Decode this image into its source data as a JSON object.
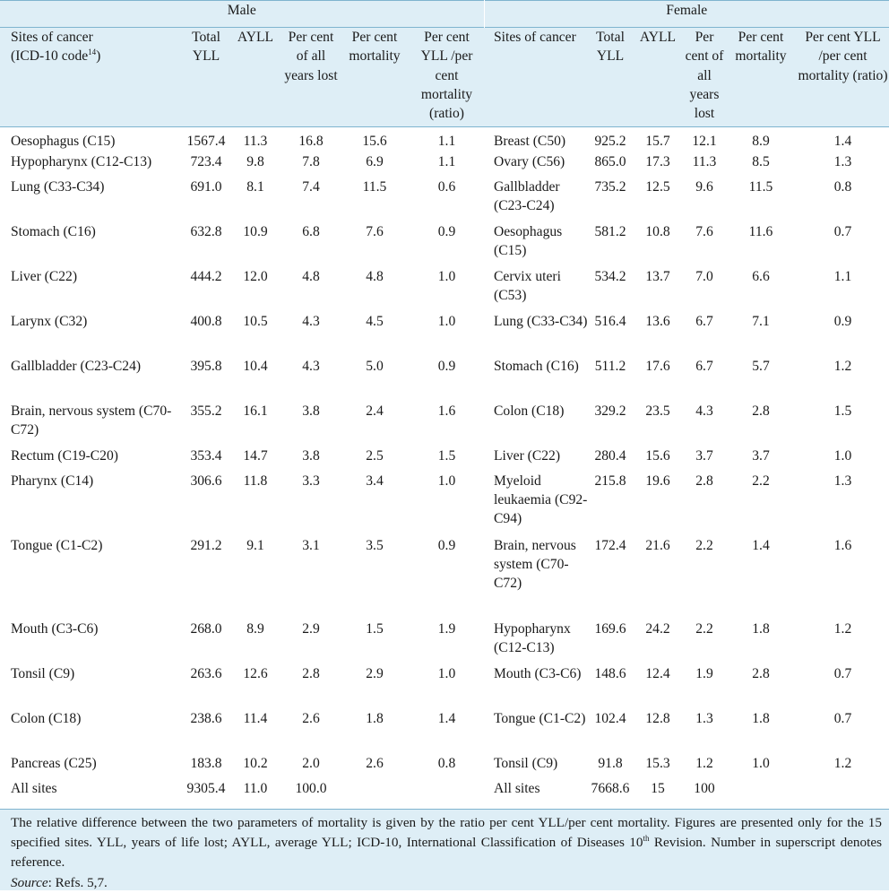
{
  "group_headers": {
    "male": "Male",
    "female": "Female"
  },
  "columns": {
    "male": {
      "site": "Sites of cancer",
      "site_line2": "(ICD-10 code",
      "site_ref": "14",
      "site_close": ")",
      "total": "Total YLL",
      "ayll": "AYLL",
      "pct_years": "Per cent of all years lost",
      "pct_mort": "Per cent mortality",
      "ratio": "Per cent YLL /per cent mortality (ratio)"
    },
    "female": {
      "site": "Sites of cancer",
      "total": "Total YLL",
      "ayll": "AYLL",
      "pct_years": "Per cent of all years lost",
      "pct_mort": "Per cent mortality",
      "ratio": "Per cent YLL /per cent mortality (ratio)"
    }
  },
  "rows": [
    {
      "m_site": "Oesophagus (C15)",
      "m_total": "1567.4",
      "m_ayll": "11.3",
      "m_pct": "16.8",
      "m_mort": "15.6",
      "m_ratio": "1.1",
      "f_site": "Breast (C50)",
      "f_total": "925.2",
      "f_ayll": "15.7",
      "f_pct": "12.1",
      "f_mort": "8.9",
      "f_ratio": "1.4"
    },
    {
      "m_site": "Hypopharynx (C12-C13)",
      "m_total": "723.4",
      "m_ayll": "9.8",
      "m_pct": "7.8",
      "m_mort": "6.9",
      "m_ratio": "1.1",
      "f_site": "Ovary (C56)",
      "f_total": "865.0",
      "f_ayll": "17.3",
      "f_pct": "11.3",
      "f_mort": "8.5",
      "f_ratio": "1.3"
    },
    {
      "m_site": "Lung (C33-C34)",
      "m_total": "691.0",
      "m_ayll": "8.1",
      "m_pct": "7.4",
      "m_mort": "11.5",
      "m_ratio": "0.6",
      "f_site": "Gallbladder (C23-C24)",
      "f_total": "735.2",
      "f_ayll": "12.5",
      "f_pct": "9.6",
      "f_mort": "11.5",
      "f_ratio": "0.8"
    },
    {
      "m_site": "Stomach (C16)",
      "m_total": "632.8",
      "m_ayll": "10.9",
      "m_pct": "6.8",
      "m_mort": "7.6",
      "m_ratio": "0.9",
      "f_site": "Oesophagus (C15)",
      "f_total": "581.2",
      "f_ayll": "10.8",
      "f_pct": "7.6",
      "f_mort": "11.6",
      "f_ratio": "0.7"
    },
    {
      "m_site": "Liver (C22)",
      "m_total": "444.2",
      "m_ayll": "12.0",
      "m_pct": "4.8",
      "m_mort": "4.8",
      "m_ratio": "1.0",
      "f_site": "Cervix uteri (C53)",
      "f_total": "534.2",
      "f_ayll": "13.7",
      "f_pct": "7.0",
      "f_mort": "6.6",
      "f_ratio": "1.1"
    },
    {
      "m_site": "Larynx (C32)",
      "m_total": "400.8",
      "m_ayll": "10.5",
      "m_pct": "4.3",
      "m_mort": "4.5",
      "m_ratio": "1.0",
      "f_site": "Lung (C33-C34)",
      "f_total": "516.4",
      "f_ayll": "13.6",
      "f_pct": "6.7",
      "f_mort": "7.1",
      "f_ratio": "0.9"
    },
    {
      "m_site": "Gallbladder (C23-C24)",
      "m_total": "395.8",
      "m_ayll": "10.4",
      "m_pct": "4.3",
      "m_mort": "5.0",
      "m_ratio": "0.9",
      "f_site": "Stomach (C16)",
      "f_total": "511.2",
      "f_ayll": "17.6",
      "f_pct": "6.7",
      "f_mort": "5.7",
      "f_ratio": "1.2"
    },
    {
      "m_site": "Brain, nervous system (C70-C72)",
      "m_total": "355.2",
      "m_ayll": "16.1",
      "m_pct": "3.8",
      "m_mort": "2.4",
      "m_ratio": "1.6",
      "f_site": "Colon (C18)",
      "f_total": "329.2",
      "f_ayll": "23.5",
      "f_pct": "4.3",
      "f_mort": "2.8",
      "f_ratio": "1.5"
    },
    {
      "m_site": "Rectum (C19-C20)",
      "m_total": "353.4",
      "m_ayll": "14.7",
      "m_pct": "3.8",
      "m_mort": "2.5",
      "m_ratio": "1.5",
      "f_site": "Liver (C22)",
      "f_total": "280.4",
      "f_ayll": "15.6",
      "f_pct": "3.7",
      "f_mort": "3.7",
      "f_ratio": "1.0"
    },
    {
      "m_site": "Pharynx (C14)",
      "m_total": "306.6",
      "m_ayll": "11.8",
      "m_pct": "3.3",
      "m_mort": "3.4",
      "m_ratio": "1.0",
      "f_site": "Myeloid leukaemia (C92-C94)",
      "f_total": "215.8",
      "f_ayll": "19.6",
      "f_pct": "2.8",
      "f_mort": "2.2",
      "f_ratio": "1.3"
    },
    {
      "m_site": "Tongue (C1-C2)",
      "m_total": "291.2",
      "m_ayll": "9.1",
      "m_pct": "3.1",
      "m_mort": "3.5",
      "m_ratio": "0.9",
      "f_site": "Brain, nervous system (C70-C72)",
      "f_total": "172.4",
      "f_ayll": "21.6",
      "f_pct": "2.2",
      "f_mort": "1.4",
      "f_ratio": "1.6"
    },
    {
      "m_site": "Mouth (C3-C6)",
      "m_total": "268.0",
      "m_ayll": "8.9",
      "m_pct": "2.9",
      "m_mort": "1.5",
      "m_ratio": "1.9",
      "f_site": "Hypopharynx (C12-C13)",
      "f_total": "169.6",
      "f_ayll": "24.2",
      "f_pct": "2.2",
      "f_mort": "1.8",
      "f_ratio": "1.2"
    },
    {
      "m_site": "Tonsil (C9)",
      "m_total": "263.6",
      "m_ayll": "12.6",
      "m_pct": "2.8",
      "m_mort": "2.9",
      "m_ratio": "1.0",
      "f_site": "Mouth (C3-C6)",
      "f_total": "148.6",
      "f_ayll": "12.4",
      "f_pct": "1.9",
      "f_mort": "2.8",
      "f_ratio": "0.7"
    },
    {
      "m_site": "Colon (C18)",
      "m_total": "238.6",
      "m_ayll": "11.4",
      "m_pct": "2.6",
      "m_mort": "1.8",
      "m_ratio": "1.4",
      "f_site": "Tongue (C1-C2)",
      "f_total": "102.4",
      "f_ayll": "12.8",
      "f_pct": "1.3",
      "f_mort": "1.8",
      "f_ratio": "0.7"
    },
    {
      "m_site": "Pancreas (C25)",
      "m_total": "183.8",
      "m_ayll": "10.2",
      "m_pct": "2.0",
      "m_mort": "2.6",
      "m_ratio": "0.8",
      "f_site": "Tonsil (C9)",
      "f_total": "91.8",
      "f_ayll": "15.3",
      "f_pct": "1.2",
      "f_mort": "1.0",
      "f_ratio": "1.2"
    }
  ],
  "all_sites": {
    "m_site": "All sites",
    "m_total": "9305.4",
    "m_ayll": "11.0",
    "m_pct": "100.0",
    "f_site": "All sites",
    "f_total": "7668.6",
    "f_ayll": "15",
    "f_pct": "100"
  },
  "footnote": {
    "text_before": "The relative difference between the two parameters of mortality is given by the ratio per cent YLL/per cent mortality. Figures are presented only for the 15 specified sites. YLL, years of life lost; AYLL, average YLL; ICD-10, International Classification of Diseases 10",
    "th": "th",
    "text_after": " Revision. Number in superscript denotes reference.",
    "source_label": "Source",
    "source_text": ": Refs. 5,7."
  }
}
